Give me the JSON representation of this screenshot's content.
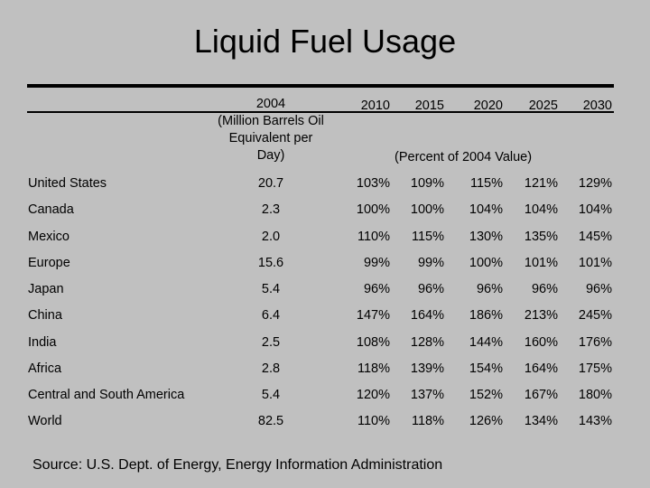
{
  "title": "Liquid Fuel Usage",
  "header": {
    "col2004_lines": [
      "2004",
      "(Million Barrels Oil",
      "Equivalent per",
      "Day)"
    ],
    "years": [
      "2010",
      "2015",
      "2020",
      "2025",
      "2030"
    ],
    "percent_note": "(Percent of 2004 Value)"
  },
  "rows": [
    {
      "name": "United States",
      "v2004": "20.7",
      "p": [
        "103%",
        "109%",
        "115%",
        "121%",
        "129%"
      ]
    },
    {
      "name": "Canada",
      "v2004": "2.3",
      "p": [
        "100%",
        "100%",
        "104%",
        "104%",
        "104%"
      ]
    },
    {
      "name": "Mexico",
      "v2004": "2.0",
      "p": [
        "110%",
        "115%",
        "130%",
        "135%",
        "145%"
      ]
    },
    {
      "name": "Europe",
      "v2004": "15.6",
      "p": [
        "99%",
        "99%",
        "100%",
        "101%",
        "101%"
      ]
    },
    {
      "name": "Japan",
      "v2004": "5.4",
      "p": [
        "96%",
        "96%",
        "96%",
        "96%",
        "96%"
      ]
    },
    {
      "name": "China",
      "v2004": "6.4",
      "p": [
        "147%",
        "164%",
        "186%",
        "213%",
        "245%"
      ]
    },
    {
      "name": "India",
      "v2004": "2.5",
      "p": [
        "108%",
        "128%",
        "144%",
        "160%",
        "176%"
      ]
    },
    {
      "name": "Africa",
      "v2004": "2.8",
      "p": [
        "118%",
        "139%",
        "154%",
        "164%",
        "175%"
      ]
    },
    {
      "name": "Central and South America",
      "v2004": "5.4",
      "p": [
        "120%",
        "137%",
        "152%",
        "167%",
        "180%"
      ]
    },
    {
      "name": "World",
      "v2004": "82.5",
      "p": [
        "110%",
        "118%",
        "126%",
        "134%",
        "143%"
      ]
    }
  ],
  "source": "Source: U.S. Dept. of Energy, Energy Information Administration"
}
